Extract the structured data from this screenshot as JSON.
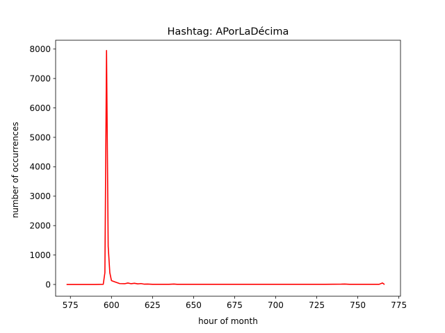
{
  "chart_data": {
    "type": "line",
    "title": "Hashtag: APorLaDécima",
    "xlabel": "hour of month",
    "ylabel": "number of occurrences",
    "xlim": [
      566,
      776
    ],
    "ylim": [
      -400,
      8300
    ],
    "xticks": [
      575,
      600,
      625,
      650,
      675,
      700,
      725,
      750,
      775
    ],
    "yticks": [
      0,
      1000,
      2000,
      3000,
      4000,
      5000,
      6000,
      7000,
      8000
    ],
    "grid": false,
    "legend": "none",
    "series": [
      {
        "color": "#ff0000",
        "x": [
          573,
          580,
          590,
          595,
          596,
          597,
          598,
          599,
          600,
          602,
          605,
          608,
          610,
          612,
          614,
          616,
          618,
          620,
          622,
          625,
          630,
          635,
          638,
          640,
          645,
          650,
          660,
          670,
          680,
          690,
          700,
          710,
          720,
          730,
          740,
          742,
          745,
          750,
          755,
          760,
          763,
          765,
          766
        ],
        "y": [
          0,
          0,
          0,
          5,
          400,
          7950,
          1300,
          400,
          130,
          90,
          30,
          25,
          50,
          25,
          40,
          20,
          30,
          10,
          15,
          5,
          5,
          5,
          15,
          5,
          5,
          5,
          5,
          5,
          5,
          5,
          5,
          5,
          5,
          5,
          10,
          15,
          5,
          5,
          5,
          5,
          5,
          50,
          10
        ]
      }
    ]
  }
}
